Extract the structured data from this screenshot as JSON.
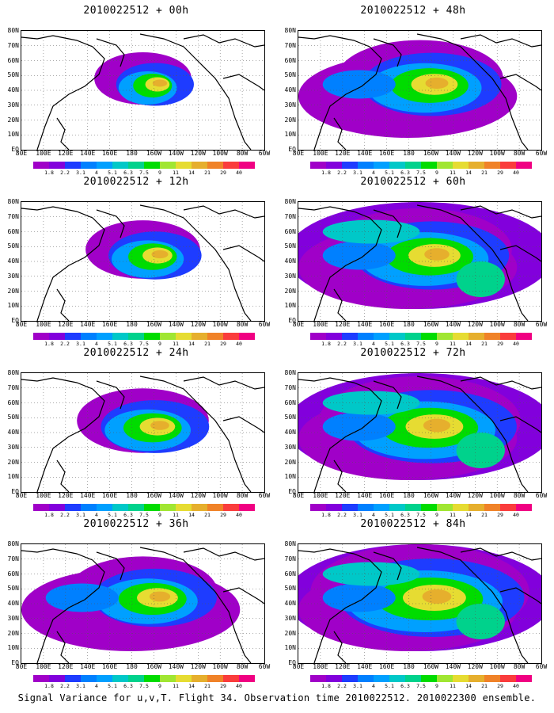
{
  "figure": {
    "caption": "Signal Variance for u,v,T. Flight 34. Observation time 2010022512. 2010022300 ensemble.",
    "lat_labels": [
      "80N",
      "70N",
      "60N",
      "50N",
      "40N",
      "30N",
      "20N",
      "10N",
      "EQ"
    ],
    "lon_labels": [
      "80E",
      "100E",
      "120E",
      "140E",
      "160E",
      "180",
      "160W",
      "140W",
      "120W",
      "100W",
      "80W",
      "60W"
    ],
    "colorbar": {
      "levels": [
        "1.8",
        "2.2",
        "3.1",
        "4",
        "5.1",
        "6.3",
        "7.5",
        "9",
        "11",
        "14",
        "21",
        "29",
        "40"
      ],
      "colors": [
        "#a000c8",
        "#8200dc",
        "#1e3cff",
        "#0080ff",
        "#00a0ff",
        "#00c8c8",
        "#00d28c",
        "#00dc00",
        "#a0e632",
        "#e6dc32",
        "#e6af2d",
        "#f08228",
        "#fa3c3c",
        "#f00082"
      ]
    },
    "panels": [
      {
        "title": "2010022512 + 00h",
        "lead_h": 0
      },
      {
        "title": "2010022512 + 48h",
        "lead_h": 48
      },
      {
        "title": "2010022512 + 12h",
        "lead_h": 12
      },
      {
        "title": "2010022512 + 60h",
        "lead_h": 60
      },
      {
        "title": "2010022512 + 24h",
        "lead_h": 24
      },
      {
        "title": "2010022512 + 72h",
        "lead_h": 72
      },
      {
        "title": "2010022512 + 36h",
        "lead_h": 36
      },
      {
        "title": "2010022512 + 84h",
        "lead_h": 84
      }
    ]
  }
}
